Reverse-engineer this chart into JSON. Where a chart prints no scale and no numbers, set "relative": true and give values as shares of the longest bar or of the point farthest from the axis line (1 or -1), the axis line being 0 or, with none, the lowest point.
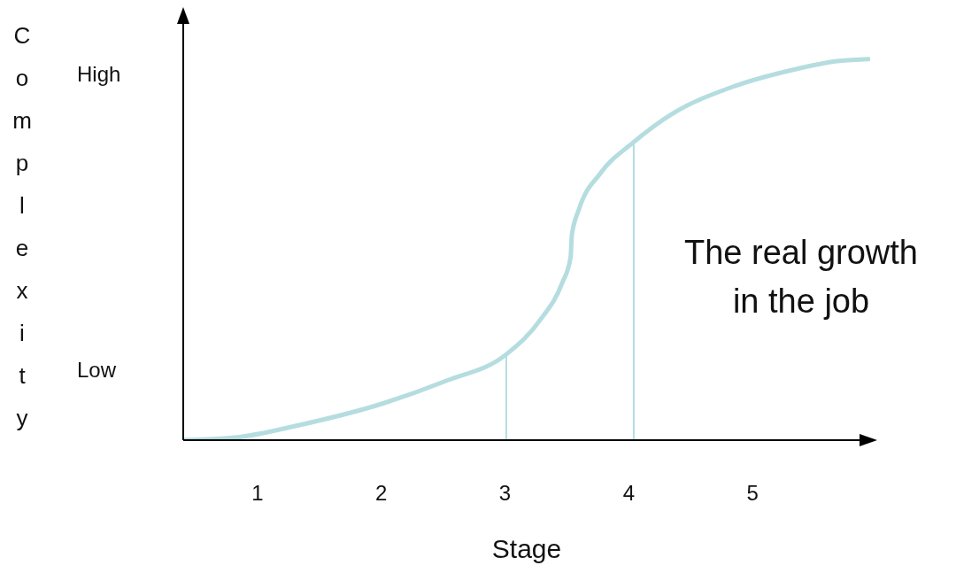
{
  "chart_data": {
    "type": "line",
    "relative": true,
    "xlabel": "Stage",
    "x": [
      0.4,
      0.82,
      1.33,
      2.02,
      2.52,
      3.01,
      3.29,
      3.46,
      3.53,
      3.54,
      3.6,
      3.77,
      4.04,
      4.35,
      4.83,
      5.33,
      5.7,
      5.94
    ],
    "series": [
      {
        "color": "#b5dde0",
        "values": [
          0,
          0.007,
          0.039,
          0.097,
          0.155,
          0.225,
          0.318,
          0.411,
          0.48,
          0.538,
          0.608,
          0.7,
          0.782,
          0.856,
          0.926,
          0.972,
          0.995,
          1
        ]
      }
    ],
    "xlim": [
      0.4,
      5.95
    ],
    "xticks": [
      1,
      2,
      3,
      4,
      5
    ],
    "ref_lines": [
      {
        "axis": "x",
        "value": 3.01,
        "color": "#b5dde0"
      },
      {
        "axis": "x",
        "value": 4.04,
        "color": "#b5dde0"
      }
    ],
    "annotations": [
      "High",
      "Low",
      "The real growth in the job",
      "Complexity"
    ]
  }
}
